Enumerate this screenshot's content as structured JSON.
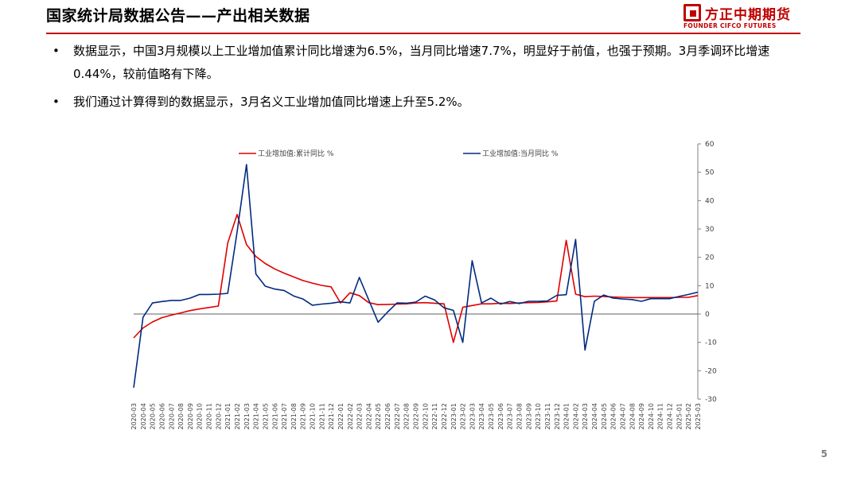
{
  "header": {
    "title": "国家统计局数据公告——产出相关数据",
    "logo_cn": "方正中期期货",
    "logo_en": "FOUNDER CIFCO FUTURES"
  },
  "bullets": [
    "数据显示，中国3月规模以上工业增加值累计同比增速为6.5%，当月同比增速7.7%，明显好于前值，也强于预期。3月季调环比增速0.44%，较前值略有下降。",
    "我们通过计算得到的数据显示，3月名义工业增加值同比增速上升至5.2%。"
  ],
  "page_number": "5",
  "colors": {
    "accent": "#c00000",
    "series_cum": "#e00000",
    "series_mon": "#002b7f"
  },
  "chart_data": {
    "type": "line",
    "title": "",
    "xlabel": "",
    "ylabel": "",
    "ylim": [
      -30,
      60
    ],
    "yticks": [
      60,
      50,
      40,
      30,
      20,
      10,
      0,
      -10,
      -20,
      -30
    ],
    "y_axis_side": "right",
    "legend_position": "top",
    "x": [
      "2020-03",
      "2020-04",
      "2020-05",
      "2020-06",
      "2020-07",
      "2020-08",
      "2020-09",
      "2020-10",
      "2020-11",
      "2020-12",
      "2021-01",
      "2021-02",
      "2021-03",
      "2021-04",
      "2021-05",
      "2021-06",
      "2021-07",
      "2021-08",
      "2021-09",
      "2021-10",
      "2021-11",
      "2021-12",
      "2022-01",
      "2022-02",
      "2022-03",
      "2022-04",
      "2022-05",
      "2022-06",
      "2022-07",
      "2022-08",
      "2022-09",
      "2022-10",
      "2022-11",
      "2022-12",
      "2023-01",
      "2023-02",
      "2023-03",
      "2023-04",
      "2023-05",
      "2023-06",
      "2023-07",
      "2023-08",
      "2023-09",
      "2023-10",
      "2023-11",
      "2023-12",
      "2024-01",
      "2024-02",
      "2024-03",
      "2024-04",
      "2024-05",
      "2024-06",
      "2024-07",
      "2024-08",
      "2024-09",
      "2024-10",
      "2024-11",
      "2024-12",
      "2025-01",
      "2025-02",
      "2025-03"
    ],
    "series": [
      {
        "name": "工业增加值:累计同比 %",
        "color": "#e00000",
        "values": [
          -8.4,
          -4.9,
          -2.8,
          -1.3,
          -0.4,
          0.4,
          1.2,
          1.8,
          2.3,
          2.8,
          25.0,
          35.1,
          24.5,
          20.3,
          17.8,
          15.9,
          14.4,
          13.1,
          11.8,
          10.9,
          10.1,
          9.6,
          3.9,
          7.5,
          6.5,
          4.0,
          3.3,
          3.4,
          3.5,
          3.6,
          3.9,
          4.0,
          3.8,
          3.6,
          -10.0,
          2.4,
          3.0,
          3.6,
          3.6,
          3.8,
          3.7,
          3.9,
          4.0,
          4.1,
          4.3,
          4.6,
          26.0,
          7.0,
          6.1,
          6.3,
          6.2,
          6.0,
          5.9,
          5.8,
          5.8,
          5.8,
          5.8,
          5.8,
          5.9,
          5.9,
          6.5
        ]
      },
      {
        "name": "工业增加值:当月同比 %",
        "color": "#002b7f",
        "values": [
          -26.0,
          -1.1,
          3.9,
          4.4,
          4.8,
          4.8,
          5.6,
          6.9,
          6.9,
          7.0,
          7.3,
          29.0,
          52.7,
          14.1,
          9.8,
          8.8,
          8.3,
          6.4,
          5.3,
          3.1,
          3.5,
          3.8,
          4.3,
          3.9,
          12.9,
          5.0,
          -2.9,
          0.7,
          3.9,
          3.8,
          4.2,
          6.3,
          5.0,
          2.2,
          1.3,
          -10.0,
          18.8,
          3.9,
          5.6,
          3.5,
          4.4,
          3.7,
          4.5,
          4.5,
          4.6,
          6.6,
          6.8,
          26.3,
          -12.7,
          4.5,
          6.7,
          5.6,
          5.3,
          5.1,
          4.5,
          5.4,
          5.4,
          5.4,
          6.2,
          6.9,
          7.7
        ]
      }
    ]
  }
}
